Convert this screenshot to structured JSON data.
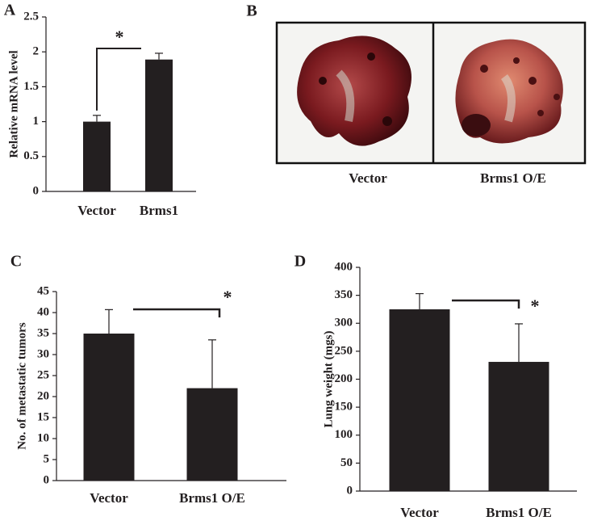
{
  "chart_data": [
    {
      "type": "bar",
      "panel_label": "A",
      "ylabel": "Relative mRNA level",
      "categories": [
        "Vector",
        "Brms1"
      ],
      "values": [
        1.0,
        1.89
      ],
      "errors": [
        0.09,
        0.09
      ],
      "color": "#231f20",
      "ylim": [
        0,
        2.5
      ],
      "yticks": [
        0,
        0.5,
        1,
        1.5,
        2,
        2.5
      ],
      "grid": false,
      "annotation": "*"
    },
    {
      "type": "bar",
      "panel_label": "C",
      "ylabel": "No. of metastatic tumors",
      "categories": [
        "Vector",
        "Brms1 O/E"
      ],
      "values": [
        35,
        22
      ],
      "errors": [
        5.7,
        11.5
      ],
      "color": "#231f20",
      "ylim": [
        0,
        45
      ],
      "yticks": [
        0,
        5,
        10,
        15,
        20,
        25,
        30,
        35,
        40,
        45
      ],
      "grid": false,
      "annotation": "*"
    },
    {
      "type": "bar",
      "panel_label": "D",
      "ylabel": "Lung weight (mgs)",
      "categories": [
        "Vector",
        "Brms1 O/E"
      ],
      "values": [
        325,
        231
      ],
      "errors": [
        28,
        68
      ],
      "color": "#231f20",
      "ylim": [
        0,
        400
      ],
      "yticks": [
        0,
        50,
        100,
        150,
        200,
        250,
        300,
        350,
        400
      ],
      "grid": false,
      "annotation": "*"
    }
  ],
  "photos": {
    "panel_label": "B",
    "captions": [
      "Vector",
      "Brms1 O/E"
    ]
  }
}
